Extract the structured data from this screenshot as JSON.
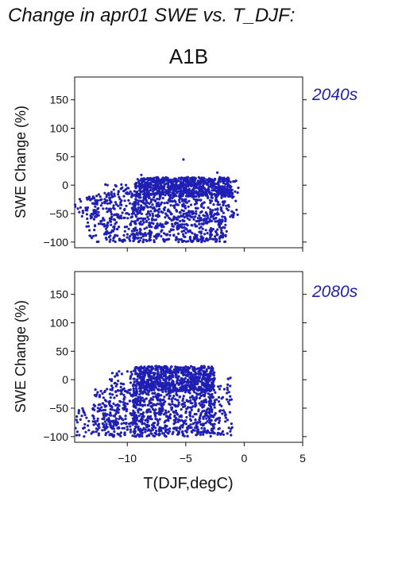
{
  "header": {
    "title": "Change in apr01 SWE vs. T_DJF:",
    "scenario": "A1B"
  },
  "chart_data": {
    "type": "scatter",
    "xlabel": "T(DJF,degC)",
    "xlim": [
      -14.5,
      5
    ],
    "x_ticks": [
      -10,
      -5,
      0,
      5
    ],
    "x_tick_labels": [
      "−10",
      "−5",
      "0",
      "5"
    ],
    "point_color": "#1f1fb4",
    "panels": [
      {
        "name": "2040s",
        "ylabel": "SWE Change (%)",
        "ylim": [
          -110,
          190
        ],
        "y_ticks": [
          -100,
          -50,
          0,
          50,
          100,
          150
        ],
        "y_tick_labels": [
          "−100",
          "−50",
          "0",
          "50",
          "100",
          "150"
        ],
        "clusters": [
          {
            "x_range": [
              -14.5,
              -12.0
            ],
            "y_range": [
              -60,
              -20
            ],
            "n": 45
          },
          {
            "x_range": [
              -13.5,
              -10.5
            ],
            "y_range": [
              -100,
              -15
            ],
            "n": 90
          },
          {
            "x_range": [
              -12.0,
              -9.0
            ],
            "y_range": [
              -100,
              2
            ],
            "n": 160
          },
          {
            "x_range": [
              -9.5,
              -1.5
            ],
            "y_range": [
              -100,
              12
            ],
            "n": 900
          },
          {
            "x_range": [
              -9.0,
              -1.0
            ],
            "y_range": [
              -20,
              14
            ],
            "n": 500
          },
          {
            "x_range": [
              -1.5,
              -0.5
            ],
            "y_range": [
              -60,
              8
            ],
            "n": 25
          }
        ],
        "points": [
          {
            "x": -5.2,
            "y": 45
          },
          {
            "x": -2.3,
            "y": 22
          },
          {
            "x": -8.8,
            "y": 18
          }
        ]
      },
      {
        "name": "2080s",
        "ylabel": "SWE Change (%)",
        "ylim": [
          -110,
          190
        ],
        "y_ticks": [
          -100,
          -50,
          0,
          50,
          100,
          150
        ],
        "y_tick_labels": [
          "−100",
          "−50",
          "0",
          "50",
          "100",
          "150"
        ],
        "clusters": [
          {
            "x_range": [
              -14.5,
              -11.5
            ],
            "y_range": [
              -100,
              -50
            ],
            "n": 60
          },
          {
            "x_range": [
              -13.0,
              -10.0
            ],
            "y_range": [
              -100,
              -15
            ],
            "n": 110
          },
          {
            "x_range": [
              -11.5,
              -8.5
            ],
            "y_range": [
              -100,
              15
            ],
            "n": 200
          },
          {
            "x_range": [
              -9.5,
              -2.5
            ],
            "y_range": [
              -100,
              22
            ],
            "n": 900
          },
          {
            "x_range": [
              -9.0,
              -2.5
            ],
            "y_range": [
              -20,
              24
            ],
            "n": 450
          },
          {
            "x_range": [
              -3.0,
              -1.0
            ],
            "y_range": [
              -100,
              5
            ],
            "n": 80
          }
        ],
        "points": [
          {
            "x": -7.5,
            "y": 24
          },
          {
            "x": -5.0,
            "y": 23
          }
        ]
      }
    ]
  }
}
